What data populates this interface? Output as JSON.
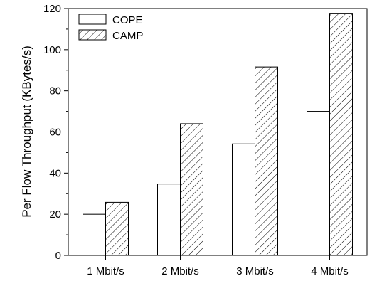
{
  "chart_data": {
    "type": "bar",
    "categories": [
      "1 Mbit/s",
      "2 Mbit/s",
      "3 Mbit/s",
      "4 Mbit/s"
    ],
    "series": [
      {
        "name": "COPE",
        "values": [
          20,
          34.7,
          54.2,
          70
        ],
        "fill": "none"
      },
      {
        "name": "CAMP",
        "values": [
          25.8,
          64,
          91.6,
          117.7
        ],
        "fill": "hatched"
      }
    ],
    "title": "",
    "xlabel": "",
    "ylabel": "Per Flow Throughput (KBytes/s)",
    "ylim": [
      0,
      120
    ],
    "yticks": [
      0,
      20,
      40,
      60,
      80,
      100,
      120
    ],
    "grid": false,
    "legend_position": "top-left",
    "colors": {
      "stroke": "#000000",
      "background": "#ffffff"
    }
  }
}
